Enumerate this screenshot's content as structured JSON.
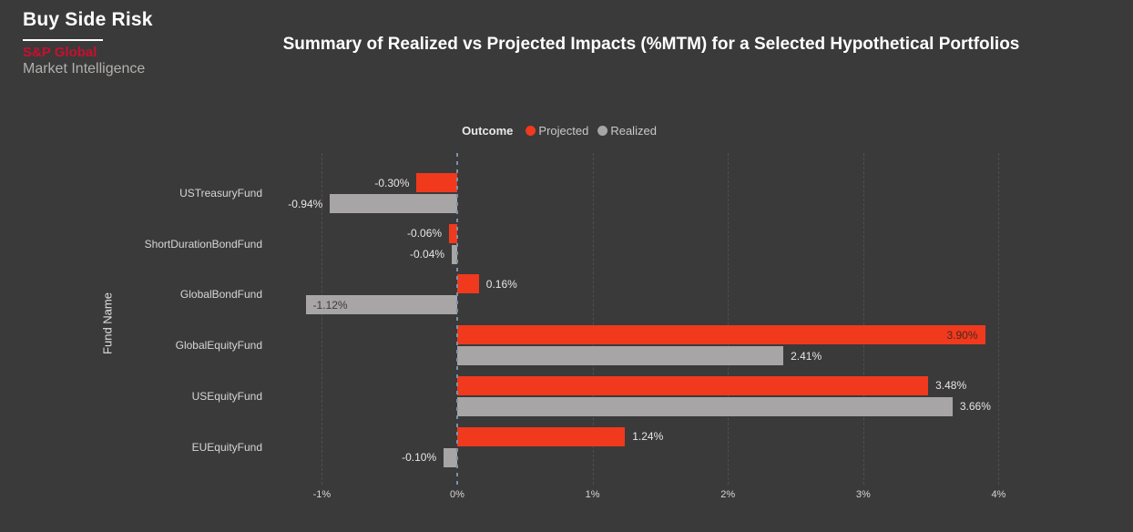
{
  "brand": {
    "app_title": "Buy Side Risk",
    "company": "S&P Global",
    "division": "Market Intelligence"
  },
  "header": {
    "title": "Summary of Realized vs Projected Impacts (%MTM) for a Selected Hypothetical Portfolios"
  },
  "legend": {
    "title": "Outcome"
  },
  "axes": {
    "y_title": "Fund Name"
  },
  "colors": {
    "background": "#3a3a3a",
    "projected": "#f1391d",
    "realized": "#a7a5a5",
    "brand_red": "#c8102e",
    "zero_line": "#7b91ad",
    "gridline": "#4f4f4f"
  },
  "chart_data": {
    "type": "bar",
    "orientation": "horizontal",
    "title": "Summary of Realized vs Projected Impacts (%MTM) for a Selected Hypothetical Portfolios",
    "xlabel": "",
    "ylabel": "Fund Name",
    "legend_title": "Outcome",
    "legend_position": "top-center",
    "grid": "vertical-dashed",
    "xlim": [
      -1.35,
      5.0
    ],
    "categories": [
      "USTreasuryFund",
      "ShortDurationBondFund",
      "GlobalBondFund",
      "GlobalEquityFund",
      "USEquityFund",
      "EUEquityFund"
    ],
    "series": [
      {
        "name": "Projected",
        "color": "#f1391d",
        "values": [
          -0.3,
          -0.06,
          0.16,
          3.9,
          3.48,
          1.24
        ],
        "labels": [
          "-0.30%",
          "-0.06%",
          "0.16%",
          "3.90%",
          "3.48%",
          "1.24%"
        ],
        "label_inside": [
          false,
          false,
          false,
          true,
          false,
          false
        ]
      },
      {
        "name": "Realized",
        "color": "#a7a5a5",
        "values": [
          -0.94,
          -0.04,
          -1.12,
          2.41,
          3.66,
          -0.1
        ],
        "labels": [
          "-0.94%",
          "-0.04%",
          "-1.12%",
          "2.41%",
          "3.66%",
          "-0.10%"
        ],
        "label_inside": [
          false,
          false,
          true,
          false,
          false,
          false
        ]
      }
    ],
    "x_ticks": [
      {
        "value": -1,
        "label": "-1%"
      },
      {
        "value": 0,
        "label": "0%"
      },
      {
        "value": 1,
        "label": "1%"
      },
      {
        "value": 2,
        "label": "2%"
      },
      {
        "value": 3,
        "label": "3%"
      },
      {
        "value": 4,
        "label": "4%"
      }
    ]
  }
}
